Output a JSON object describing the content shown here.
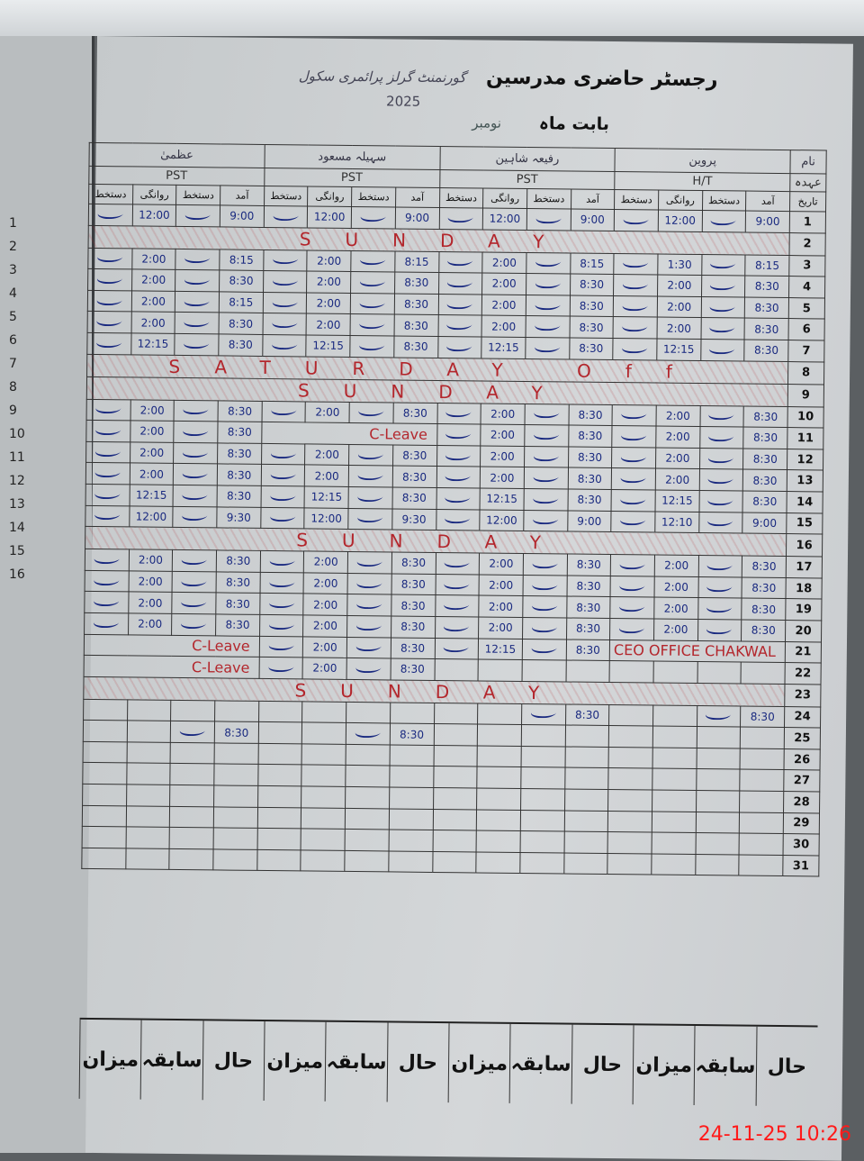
{
  "register": {
    "title": "رجسٹر حاضری مدرسین",
    "school": "گورنمنٹ گرلز پرائمری سکول",
    "month_label": "بابت ماہ",
    "month_value": "نومبر",
    "year": "2025"
  },
  "header": {
    "name_label": "نام",
    "designation_label": "عہدہ",
    "date_label": "تاریخ",
    "sub_columns": [
      "آمد",
      "دستخط",
      "روانگی",
      "دستخط"
    ]
  },
  "teachers": [
    {
      "name": "پروین",
      "designation": "H/T"
    },
    {
      "name": "رفیعہ شاہین",
      "designation": "PST"
    },
    {
      "name": "سہیلہ مسعود",
      "designation": "PST"
    },
    {
      "name": "عظمیٰ",
      "designation": "PST"
    }
  ],
  "rows": [
    {
      "date": "1",
      "cells": [
        [
          "9:00",
          "12:00"
        ],
        [
          "9:00",
          "12:00"
        ],
        [
          "9:00",
          "12:00"
        ],
        [
          "9:00",
          "12:00"
        ]
      ]
    },
    {
      "date": "2",
      "note": "SUNDAY"
    },
    {
      "date": "3",
      "cells": [
        [
          "8:15",
          "1:30"
        ],
        [
          "8:15",
          "2:00"
        ],
        [
          "8:15",
          "2:00"
        ],
        [
          "8:15",
          "2:00"
        ]
      ]
    },
    {
      "date": "4",
      "cells": [
        [
          "8:30",
          "2:00"
        ],
        [
          "8:30",
          "2:00"
        ],
        [
          "8:30",
          "2:00"
        ],
        [
          "8:30",
          "2:00"
        ]
      ]
    },
    {
      "date": "5",
      "cells": [
        [
          "8:30",
          "2:00"
        ],
        [
          "8:30",
          "2:00"
        ],
        [
          "8:30",
          "2:00"
        ],
        [
          "8:15",
          "2:00"
        ]
      ]
    },
    {
      "date": "6",
      "cells": [
        [
          "8:30",
          "2:00"
        ],
        [
          "8:30",
          "2:00"
        ],
        [
          "8:30",
          "2:00"
        ],
        [
          "8:30",
          "2:00"
        ]
      ]
    },
    {
      "date": "7",
      "cells": [
        [
          "8:30",
          "12:15"
        ],
        [
          "8:30",
          "12:15"
        ],
        [
          "8:30",
          "12:15"
        ],
        [
          "8:30",
          "12:15"
        ]
      ]
    },
    {
      "date": "8",
      "note": "SATURDAY Off"
    },
    {
      "date": "9",
      "note": "SUNDAY"
    },
    {
      "date": "10",
      "cells": [
        [
          "8:30",
          "2:00"
        ],
        [
          "8:30",
          "2:00"
        ],
        [
          "8:30",
          "2:00"
        ],
        [
          "8:30",
          "2:00"
        ]
      ]
    },
    {
      "date": "11",
      "cells": [
        [
          "8:30",
          "2:00"
        ],
        [
          "8:30",
          "2:00"
        ],
        [
          "C-Leave",
          ""
        ],
        [
          "8:30",
          "2:00"
        ]
      ]
    },
    {
      "date": "12",
      "cells": [
        [
          "8:30",
          "2:00"
        ],
        [
          "8:30",
          "2:00"
        ],
        [
          "8:30",
          "2:00"
        ],
        [
          "8:30",
          "2:00"
        ]
      ]
    },
    {
      "date": "13",
      "cells": [
        [
          "8:30",
          "2:00"
        ],
        [
          "8:30",
          "2:00"
        ],
        [
          "8:30",
          "2:00"
        ],
        [
          "8:30",
          "2:00"
        ]
      ]
    },
    {
      "date": "14",
      "cells": [
        [
          "8:30",
          "12:15"
        ],
        [
          "8:30",
          "12:15"
        ],
        [
          "8:30",
          "12:15"
        ],
        [
          "8:30",
          "12:15"
        ]
      ]
    },
    {
      "date": "15",
      "cells": [
        [
          "9:00",
          "12:10"
        ],
        [
          "9:00",
          "12:00"
        ],
        [
          "9:30",
          "12:00"
        ],
        [
          "9:30",
          "12:00"
        ]
      ]
    },
    {
      "date": "16",
      "note": "SUNDAY"
    },
    {
      "date": "17",
      "cells": [
        [
          "8:30",
          "2:00"
        ],
        [
          "8:30",
          "2:00"
        ],
        [
          "8:30",
          "2:00"
        ],
        [
          "8:30",
          "2:00"
        ]
      ]
    },
    {
      "date": "18",
      "cells": [
        [
          "8:30",
          "2:00"
        ],
        [
          "8:30",
          "2:00"
        ],
        [
          "8:30",
          "2:00"
        ],
        [
          "8:30",
          "2:00"
        ]
      ]
    },
    {
      "date": "19",
      "cells": [
        [
          "8:30",
          "2:00"
        ],
        [
          "8:30",
          "2:00"
        ],
        [
          "8:30",
          "2:00"
        ],
        [
          "8:30",
          "2:00"
        ]
      ]
    },
    {
      "date": "20",
      "cells": [
        [
          "8:30",
          "2:00"
        ],
        [
          "8:30",
          "2:00"
        ],
        [
          "8:30",
          "2:00"
        ],
        [
          "8:30",
          "2:00"
        ]
      ]
    },
    {
      "date": "21",
      "cells": [
        [
          "CEO OFFICE CHAKWAL",
          ""
        ],
        [
          "8:30",
          "12:15"
        ],
        [
          "8:30",
          "2:00"
        ],
        [
          "C-Leave",
          ""
        ]
      ]
    },
    {
      "date": "22",
      "cells": [
        [
          "",
          ""
        ],
        [
          "",
          ""
        ],
        [
          "8:30",
          "2:00"
        ],
        [
          "C-Leave",
          ""
        ]
      ]
    },
    {
      "date": "23",
      "note": "SUNDAY"
    },
    {
      "date": "24",
      "cells": [
        [
          "8:30",
          ""
        ],
        [
          "8:30",
          ""
        ],
        [
          "",
          ""
        ],
        [
          "",
          ""
        ]
      ]
    },
    {
      "date": "25",
      "cells": [
        [
          "",
          ""
        ],
        [
          "",
          ""
        ],
        [
          "8:30",
          ""
        ],
        [
          "8:30",
          ""
        ]
      ]
    },
    {
      "date": "26"
    },
    {
      "date": "27"
    },
    {
      "date": "28"
    },
    {
      "date": "29"
    },
    {
      "date": "30"
    },
    {
      "date": "31"
    }
  ],
  "footer": [
    "حال",
    "سابقہ",
    "میزان",
    "حال",
    "سابقہ",
    "میزان",
    "حال",
    "سابقہ",
    "میزان",
    "حال",
    "سابقہ",
    "میزان"
  ],
  "left_page_numbers": [
    "1",
    "2",
    "3",
    "4",
    "5",
    "6",
    "7",
    "8",
    "9",
    "10",
    "11",
    "12",
    "13",
    "14",
    "15",
    "16"
  ],
  "timestamp": "24-11-25  10:26",
  "colors": {
    "ink_blue": "#1a2a80",
    "ink_red": "#b3262c",
    "timestamp": "#ff1a1a"
  }
}
